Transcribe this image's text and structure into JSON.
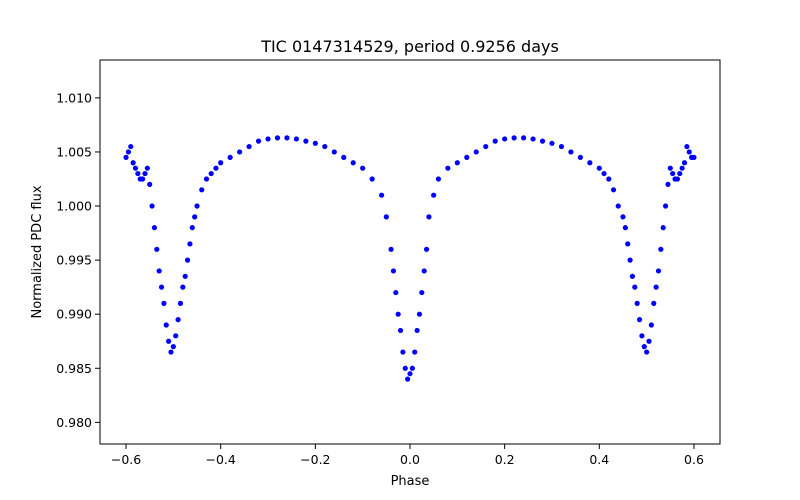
{
  "chart_data": {
    "type": "scatter",
    "title": "TIC 0147314529, period 0.9256 days",
    "xlabel": "Phase",
    "ylabel": "Normalized PDC flux",
    "xlim": [
      -0.655,
      0.655
    ],
    "ylim": [
      0.978,
      1.0135
    ],
    "xticks": [
      -0.6,
      -0.4,
      -0.2,
      0.0,
      0.2,
      0.4,
      0.6
    ],
    "xtick_labels": [
      "−0.6",
      "−0.4",
      "−0.2",
      "0.0",
      "0.2",
      "0.4",
      "0.6"
    ],
    "yticks": [
      0.98,
      0.985,
      0.99,
      0.995,
      1.0,
      1.005,
      1.01
    ],
    "ytick_labels": [
      "0.980",
      "0.985",
      "0.990",
      "0.995",
      "1.000",
      "1.005",
      "1.010"
    ],
    "grid": false,
    "color": "#0000ff",
    "series": [
      {
        "x": [
          -0.6,
          -0.595,
          -0.59,
          -0.585,
          -0.58,
          -0.575,
          -0.57,
          -0.565,
          -0.56,
          -0.555,
          -0.55,
          -0.545,
          -0.54,
          -0.535,
          -0.53,
          -0.525,
          -0.52,
          -0.515,
          -0.51,
          -0.505,
          -0.5,
          -0.495,
          -0.49,
          -0.485,
          -0.48,
          -0.475,
          -0.47,
          -0.465,
          -0.46,
          -0.455,
          -0.45,
          -0.44,
          -0.43,
          -0.42,
          -0.41,
          -0.4,
          -0.38,
          -0.36,
          -0.34,
          -0.32,
          -0.3,
          -0.28,
          -0.26,
          -0.24,
          -0.22,
          -0.2,
          -0.18,
          -0.16,
          -0.14,
          -0.12,
          -0.1,
          -0.08,
          -0.06,
          -0.05,
          -0.04,
          -0.035,
          -0.03,
          -0.025,
          -0.02,
          -0.015,
          -0.01,
          -0.005,
          0.0,
          0.005,
          0.01,
          0.015,
          0.02,
          0.025,
          0.03,
          0.035,
          0.04,
          0.05,
          0.06,
          0.08,
          0.1,
          0.12,
          0.14,
          0.16,
          0.18,
          0.2,
          0.22,
          0.24,
          0.26,
          0.28,
          0.3,
          0.32,
          0.34,
          0.36,
          0.38,
          0.4,
          0.41,
          0.42,
          0.43,
          0.44,
          0.45,
          0.455,
          0.46,
          0.465,
          0.47,
          0.475,
          0.48,
          0.485,
          0.49,
          0.495,
          0.5,
          0.505,
          0.51,
          0.515,
          0.52,
          0.525,
          0.53,
          0.535,
          0.54,
          0.545,
          0.55,
          0.555,
          0.56,
          0.565,
          0.57,
          0.575,
          0.58,
          0.585,
          0.59,
          0.595,
          0.6
        ],
        "y": [
          1.0045,
          1.005,
          1.0055,
          1.004,
          1.0035,
          1.003,
          1.0025,
          1.0025,
          1.003,
          1.0035,
          1.002,
          1.0,
          0.998,
          0.996,
          0.994,
          0.9925,
          0.991,
          0.989,
          0.9875,
          0.9865,
          0.987,
          0.988,
          0.9895,
          0.991,
          0.9925,
          0.9935,
          0.995,
          0.9965,
          0.998,
          0.999,
          1.0,
          1.0015,
          1.0025,
          1.003,
          1.0035,
          1.004,
          1.0045,
          1.005,
          1.0055,
          1.006,
          1.0062,
          1.0063,
          1.0063,
          1.0062,
          1.006,
          1.0058,
          1.0055,
          1.005,
          1.0045,
          1.004,
          1.0035,
          1.0025,
          1.001,
          0.999,
          0.996,
          0.994,
          0.992,
          0.99,
          0.9885,
          0.9865,
          0.985,
          0.984,
          0.9845,
          0.985,
          0.9865,
          0.9885,
          0.99,
          0.992,
          0.994,
          0.996,
          0.999,
          1.001,
          1.0025,
          1.0035,
          1.004,
          1.0045,
          1.005,
          1.0055,
          1.006,
          1.0062,
          1.0063,
          1.0063,
          1.0062,
          1.006,
          1.0058,
          1.0055,
          1.005,
          1.0045,
          1.004,
          1.0035,
          1.003,
          1.0025,
          1.0015,
          1.0,
          0.999,
          0.998,
          0.9965,
          0.995,
          0.9935,
          0.9925,
          0.991,
          0.9895,
          0.988,
          0.987,
          0.9865,
          0.9875,
          0.989,
          0.991,
          0.9925,
          0.994,
          0.996,
          0.998,
          1.0,
          1.002,
          1.0035,
          1.003,
          1.0025,
          1.0025,
          1.003,
          1.0035,
          1.004,
          1.0055,
          1.005,
          1.0045,
          1.0045
        ]
      }
    ]
  }
}
